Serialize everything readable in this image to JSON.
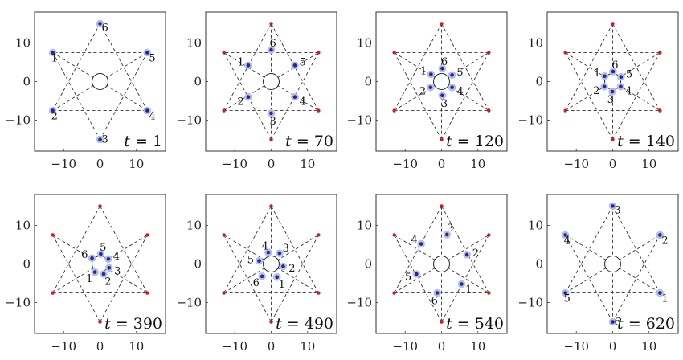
{
  "chart_data": {
    "type": "scatter",
    "description_kind": "multi-agent trajectory snapshots",
    "xlim": [
      -18,
      18
    ],
    "ylim": [
      -18,
      18
    ],
    "xticks": [
      -10,
      0,
      10
    ],
    "yticks": [
      -10,
      0,
      10
    ],
    "obstacle": {
      "center": [
        0,
        0
      ],
      "radius": 2.2
    },
    "goal_points": [
      [
        0,
        15
      ],
      [
        13,
        7.5
      ],
      [
        13,
        -7.5
      ],
      [
        0,
        -15
      ],
      [
        -13,
        -7.5
      ],
      [
        -13,
        7.5
      ]
    ],
    "paths": [
      {
        "from": [
          -13,
          7.5
        ],
        "to": [
          13,
          -7.5
        ]
      },
      {
        "from": [
          -13,
          -7.5
        ],
        "to": [
          13,
          7.5
        ]
      },
      {
        "from": [
          0,
          -15
        ],
        "to": [
          0,
          15
        ]
      },
      {
        "from": [
          13,
          -7.5
        ],
        "to": [
          0,
          15
        ]
      },
      {
        "from": [
          13,
          7.5
        ],
        "to": [
          -13,
          7.5
        ]
      },
      {
        "from": [
          0,
          15
        ],
        "to": [
          -13,
          -7.5
        ]
      },
      {
        "from": [
          13,
          7.5
        ],
        "to": [
          0,
          -15
        ]
      },
      {
        "from": [
          -13,
          7.5
        ],
        "to": [
          0,
          -15
        ]
      },
      {
        "from": [
          -13,
          -7.5
        ],
        "to": [
          13,
          -7.5
        ]
      }
    ],
    "panels": [
      {
        "t_prefix": "t",
        "t_suffix": " = 1",
        "agents": [
          {
            "id": "1",
            "x": -13,
            "y": 7.5
          },
          {
            "id": "2",
            "x": -13,
            "y": -7.5
          },
          {
            "id": "3",
            "x": 0,
            "y": -15
          },
          {
            "id": "4",
            "x": 13,
            "y": -7.5
          },
          {
            "id": "5",
            "x": 13,
            "y": 7.5
          },
          {
            "id": "6",
            "x": 0,
            "y": 15
          }
        ]
      },
      {
        "t_prefix": "t",
        "t_suffix": " = 70",
        "agents": [
          {
            "id": "1",
            "x": -6.3,
            "y": 4.2
          },
          {
            "id": "2",
            "x": -6.3,
            "y": -4.0
          },
          {
            "id": "3",
            "x": 0,
            "y": -8.2
          },
          {
            "id": "4",
            "x": 6.5,
            "y": -4.0
          },
          {
            "id": "5",
            "x": 6.5,
            "y": 4.2
          },
          {
            "id": "6",
            "x": 0,
            "y": 8.2
          }
        ]
      },
      {
        "t_prefix": "t",
        "t_suffix": " = 120",
        "agents": [
          {
            "id": "1",
            "x": -2.9,
            "y": 1.9
          },
          {
            "id": "2",
            "x": -3.0,
            "y": -1.5
          },
          {
            "id": "3",
            "x": 0.2,
            "y": -3.6
          },
          {
            "id": "4",
            "x": 2.9,
            "y": -1.5
          },
          {
            "id": "5",
            "x": 2.9,
            "y": 1.7
          },
          {
            "id": "6",
            "x": 0.2,
            "y": 3.4
          }
        ]
      },
      {
        "t_prefix": "t",
        "t_suffix": " = 140",
        "agents": [
          {
            "id": "1",
            "x": -2.2,
            "y": 1.4
          },
          {
            "id": "2",
            "x": -2.3,
            "y": -1.3
          },
          {
            "id": "3",
            "x": -0.1,
            "y": -2.6
          },
          {
            "id": "4",
            "x": 2.2,
            "y": -1.3
          },
          {
            "id": "5",
            "x": 2.3,
            "y": 1.2
          },
          {
            "id": "6",
            "x": 0.1,
            "y": 2.6
          }
        ]
      },
      {
        "t_prefix": "t",
        "t_suffix": " = 390",
        "agents": [
          {
            "id": "1",
            "x": -1.4,
            "y": -2.1
          },
          {
            "id": "2",
            "x": 1.0,
            "y": -2.6
          },
          {
            "id": "3",
            "x": 2.5,
            "y": -1.0
          },
          {
            "id": "4",
            "x": 2.3,
            "y": 1.3
          },
          {
            "id": "5",
            "x": 0.2,
            "y": 2.6
          },
          {
            "id": "6",
            "x": -2.2,
            "y": 1.5
          }
        ]
      },
      {
        "t_prefix": "t",
        "t_suffix": " = 490",
        "agents": [
          {
            "id": "1",
            "x": 1.6,
            "y": -3.4
          },
          {
            "id": "2",
            "x": 3.3,
            "y": -0.6
          },
          {
            "id": "3",
            "x": 2.3,
            "y": 2.8
          },
          {
            "id": "4",
            "x": -0.8,
            "y": 3.0
          },
          {
            "id": "5",
            "x": -3.3,
            "y": 0.8
          },
          {
            "id": "6",
            "x": -2.5,
            "y": -3.2
          }
        ]
      },
      {
        "t_prefix": "t",
        "t_suffix": " = 540",
        "agents": [
          {
            "id": "1",
            "x": 5.5,
            "y": -5.2
          },
          {
            "id": "2",
            "x": 7.0,
            "y": 2.4
          },
          {
            "id": "3",
            "x": 1.5,
            "y": 7.6
          },
          {
            "id": "4",
            "x": -5.6,
            "y": 5.2
          },
          {
            "id": "5",
            "x": -6.9,
            "y": -2.6
          },
          {
            "id": "6",
            "x": -1.2,
            "y": -7.5
          }
        ]
      },
      {
        "t_prefix": "t",
        "t_suffix": " = 620",
        "agents": [
          {
            "id": "1",
            "x": 13,
            "y": -7.5
          },
          {
            "id": "2",
            "x": 13,
            "y": 7.5
          },
          {
            "id": "3",
            "x": 0,
            "y": 15
          },
          {
            "id": "4",
            "x": -13,
            "y": 7.5
          },
          {
            "id": "5",
            "x": -13,
            "y": -7.5
          },
          {
            "id": "6",
            "x": 0,
            "y": -15
          }
        ]
      }
    ],
    "colors": {
      "goal": "#e0141e",
      "agent": "#1f2a9a",
      "agent_halo": "#b8bde6",
      "path": "#333333"
    },
    "grid": false
  }
}
